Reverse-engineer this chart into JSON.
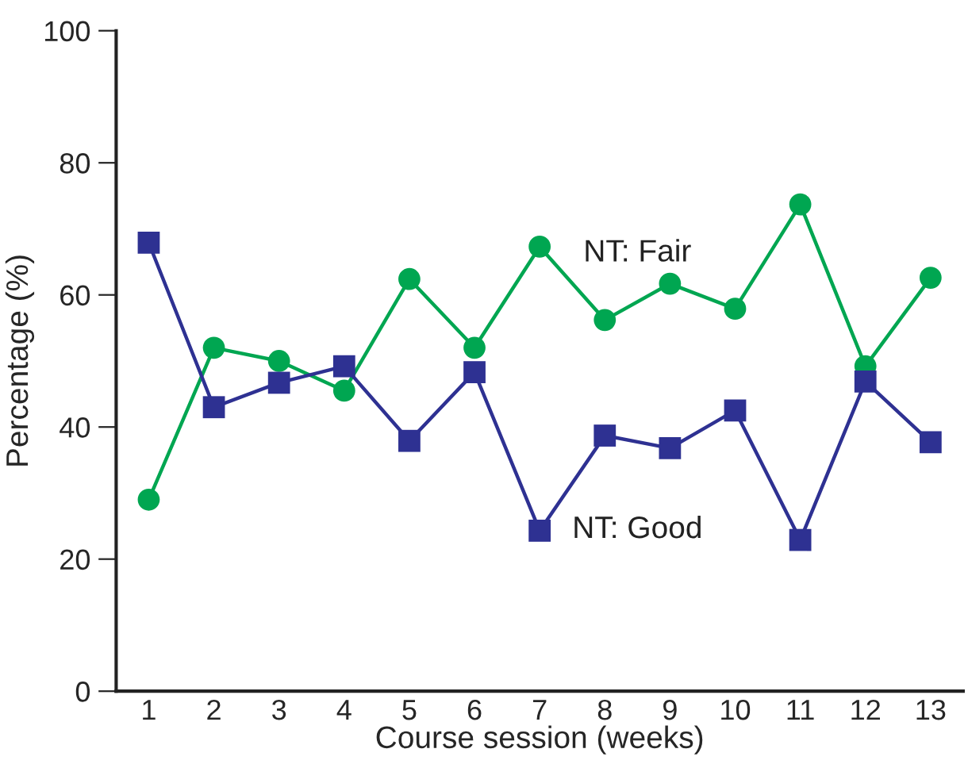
{
  "chart_data": {
    "type": "line",
    "xlabel": "Course session (weeks)",
    "ylabel": "Percentage (%)",
    "categories": [
      "1",
      "2",
      "3",
      "4",
      "5",
      "6",
      "7",
      "8",
      "9",
      "10",
      "11",
      "12",
      "13"
    ],
    "ylim": [
      0,
      100
    ],
    "yticks": [
      0,
      20,
      40,
      60,
      80,
      100
    ],
    "grid": false,
    "legend": false,
    "series": [
      {
        "name": "NT: Fair",
        "color": "#00a651",
        "marker": "circle",
        "values": [
          29,
          52,
          50,
          45.5,
          62.4,
          52,
          67.3,
          56.2,
          61.7,
          57.9,
          73.7,
          49.2,
          62.6
        ]
      },
      {
        "name": "NT: Good",
        "color": "#2e3192",
        "marker": "square",
        "values": [
          67.9,
          43,
          46.7,
          49.2,
          37.9,
          48.3,
          24.3,
          38.7,
          36.8,
          42.5,
          22.9,
          46.9,
          37.7
        ]
      }
    ]
  }
}
